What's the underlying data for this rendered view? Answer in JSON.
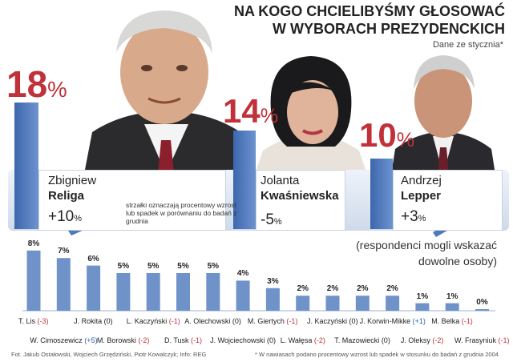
{
  "header": {
    "title_line1": "NA KOGO CHCIELIBYŚMY GŁOSOWAĆ",
    "title_line2": "W WYBORACH PREZYDENCKICH",
    "subtitle": "Dane ze stycznia*"
  },
  "top_candidates": [
    {
      "first": "Zbigniew",
      "last": "Religa",
      "pct": "18",
      "change": "+10"
    },
    {
      "first": "Jolanta",
      "last": "Kwaśniewska",
      "pct": "14",
      "change": "-5"
    },
    {
      "first": "Andrzej",
      "last": "Lepper",
      "pct": "10",
      "change": "+3"
    }
  ],
  "percent_sign": "%",
  "arrow_note": "strzałki oznaczają procentowy wzrost lub spadek w porównaniu do badań z grudnia",
  "respondents_note_line1": "(respondenci mogli wskazać",
  "respondents_note_line2": "dowolne osoby)",
  "chart_data": {
    "type": "bar",
    "ylim": [
      0,
      18
    ],
    "categories": [
      "T. Lis",
      "W. Cimoszewicz",
      "J. Rokita",
      "M. Borowski",
      "L. Kaczyński",
      "D. Tusk",
      "A. Olechowski",
      "J. Wojciechowski",
      "M. Giertych",
      "L. Wałęsa",
      "J. Kaczyński",
      "T. Mazowiecki",
      "J. Korwin-Mikke",
      "J. Oleksy",
      "M. Belka",
      "W. Frasyniuk"
    ],
    "values": [
      8,
      7,
      6,
      5,
      5,
      5,
      5,
      4,
      3,
      2,
      2,
      2,
      2,
      1,
      1,
      0
    ],
    "value_labels": [
      "8%",
      "7%",
      "6%",
      "5%",
      "5%",
      "5%",
      "5%",
      "4%",
      "3%",
      "2%",
      "2%",
      "2%",
      "2%",
      "1%",
      "1%",
      "0%"
    ],
    "changes": [
      "(-3)",
      "(+5)",
      "(0)",
      "(-2)",
      "(-1)",
      "(-1)",
      "(0)",
      "(0)",
      "(-1)",
      "(-2)",
      "(0)",
      "(0)",
      "(+1)",
      "(-2)",
      "(-1)",
      "(-1)"
    ],
    "bar_color": "#6f93c9",
    "negative_color": "#c0313a",
    "positive_color": "#2b5fa8"
  },
  "footer": {
    "credits": "Fot. Jakub Ostałowski, Wojciech Grzędziński, Piotr Kowalczyk; Info: REG",
    "footnote": "* W nawiasach podano procentowy wzrost lub spadek w stosunku do badań z grudnia 2004"
  }
}
